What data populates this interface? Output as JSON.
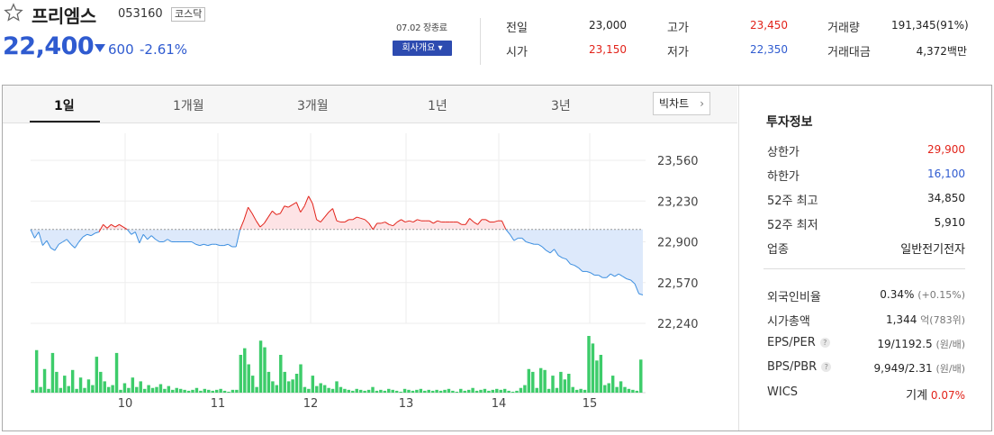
{
  "header": {
    "name": "프리엠스",
    "code": "053160",
    "market": "코스닥",
    "price": "22,400",
    "change_amount": "600",
    "change_rate": "-2.61%",
    "close_time": "07.02 장종료",
    "company_button": "회사개요 ▾"
  },
  "quote": {
    "prev_close_label": "전일",
    "prev_close": "23,000",
    "open_label": "시가",
    "open": "23,150",
    "high_label": "고가",
    "high": "23,450",
    "low_label": "저가",
    "low": "22,350",
    "volume_label": "거래량",
    "volume": "191,345(91%)",
    "amount_label": "거래대금",
    "amount": "4,372백만"
  },
  "tabs": [
    "1일",
    "1개월",
    "3개월",
    "1년",
    "3년"
  ],
  "bigchart_label": "빅차트",
  "colors": {
    "up": "#e2231a",
    "down": "#2f5bd0",
    "volume": "#3dcc6a",
    "up_fill": "#fde3e5",
    "down_fill": "#dde9fb"
  },
  "chart_data": {
    "type": "line",
    "y_ticks": [
      "23,560",
      "23,230",
      "22,900",
      "22,570",
      "22,240"
    ],
    "ylim": [
      22240,
      23560
    ],
    "x_ticks": [
      "10",
      "11",
      "12",
      "13",
      "14",
      "15"
    ],
    "baseline": 23000,
    "values": [
      23000,
      22930,
      22980,
      22870,
      22910,
      22850,
      22830,
      22880,
      22900,
      22920,
      22880,
      22850,
      22900,
      22940,
      22960,
      22950,
      22970,
      22980,
      23040,
      23010,
      23040,
      23020,
      23040,
      23020,
      23000,
      22960,
      22980,
      22890,
      22960,
      22920,
      22950,
      22920,
      22900,
      22900,
      22920,
      22900,
      22900,
      22900,
      22900,
      22900,
      22900,
      22880,
      22870,
      22880,
      22870,
      22880,
      22880,
      22870,
      22870,
      22880,
      22860,
      22860,
      23000,
      23080,
      23180,
      23130,
      23070,
      23020,
      23050,
      23100,
      23150,
      23120,
      23130,
      23190,
      23180,
      23200,
      23220,
      23140,
      23190,
      23270,
      23210,
      23080,
      23060,
      23100,
      23140,
      23170,
      23070,
      23060,
      23060,
      23080,
      23080,
      23100,
      23090,
      23080,
      23050,
      23000,
      23050,
      23050,
      23060,
      23040,
      23030,
      23060,
      23080,
      23060,
      23070,
      23060,
      23080,
      23070,
      23070,
      23070,
      23050,
      23070,
      23060,
      23060,
      23060,
      23060,
      23060,
      23040,
      23040,
      23090,
      23060,
      23040,
      23080,
      23080,
      23060,
      23060,
      23070,
      23070,
      23000,
      22960,
      22910,
      22930,
      22930,
      22900,
      22890,
      22880,
      22880,
      22860,
      22830,
      22810,
      22840,
      22790,
      22770,
      22760,
      22720,
      22710,
      22690,
      22660,
      22660,
      22650,
      22630,
      22630,
      22610,
      22610,
      22640,
      22620,
      22640,
      22620,
      22600,
      22590,
      22560,
      22480,
      22470
    ],
    "volume": [
      3,
      45,
      6,
      25,
      4,
      42,
      22,
      5,
      18,
      7,
      24,
      4,
      16,
      5,
      14,
      8,
      38,
      22,
      12,
      6,
      8,
      42,
      3,
      10,
      5,
      16,
      6,
      12,
      4,
      8,
      5,
      6,
      9,
      4,
      7,
      3,
      5,
      4,
      3,
      2,
      3,
      5,
      2,
      4,
      3,
      2,
      3,
      4,
      2,
      1,
      3,
      3,
      40,
      47,
      30,
      18,
      6,
      55,
      48,
      22,
      12,
      8,
      40,
      22,
      12,
      14,
      20,
      30,
      6,
      4,
      18,
      7,
      10,
      8,
      5,
      4,
      12,
      6,
      4,
      3,
      2,
      4,
      3,
      2,
      3,
      6,
      2,
      3,
      2,
      4,
      3,
      2,
      1,
      4,
      3,
      2,
      3,
      4,
      2,
      3,
      2,
      3,
      2,
      3,
      4,
      2,
      1,
      4,
      2,
      3,
      5,
      2,
      3,
      4,
      2,
      3,
      4,
      3,
      4,
      2,
      1,
      2,
      5,
      8,
      25,
      22,
      5,
      26,
      24,
      4,
      18,
      5,
      22,
      14,
      20,
      6,
      3,
      4,
      3,
      60,
      52,
      34,
      40,
      8,
      10,
      18,
      6,
      12,
      6,
      4,
      3,
      2,
      35
    ]
  },
  "invest": {
    "title": "투자정보",
    "upper_label": "상한가",
    "upper": "29,900",
    "lower_label": "하한가",
    "lower": "16,100",
    "high52_label": "52주 최고",
    "high52": "34,850",
    "low52_label": "52주 최저",
    "low52": "5,910",
    "sector_label": "업종",
    "sector": "일반전기전자",
    "foreign_label": "외국인비율",
    "foreign": "0.34%",
    "foreign_sub": "(+0.15%)",
    "mcap_label": "시가총액",
    "mcap": "1,344",
    "mcap_sub": "억(783위)",
    "eps_label": "EPS/PER",
    "eps": "19/1192.5",
    "eps_sub": "(원/배)",
    "bps_label": "BPS/PBR",
    "bps": "9,949/2.31",
    "bps_sub": "(원/배)",
    "wics_label": "WICS",
    "wics": "기계",
    "wics_rate": "0.07%"
  }
}
